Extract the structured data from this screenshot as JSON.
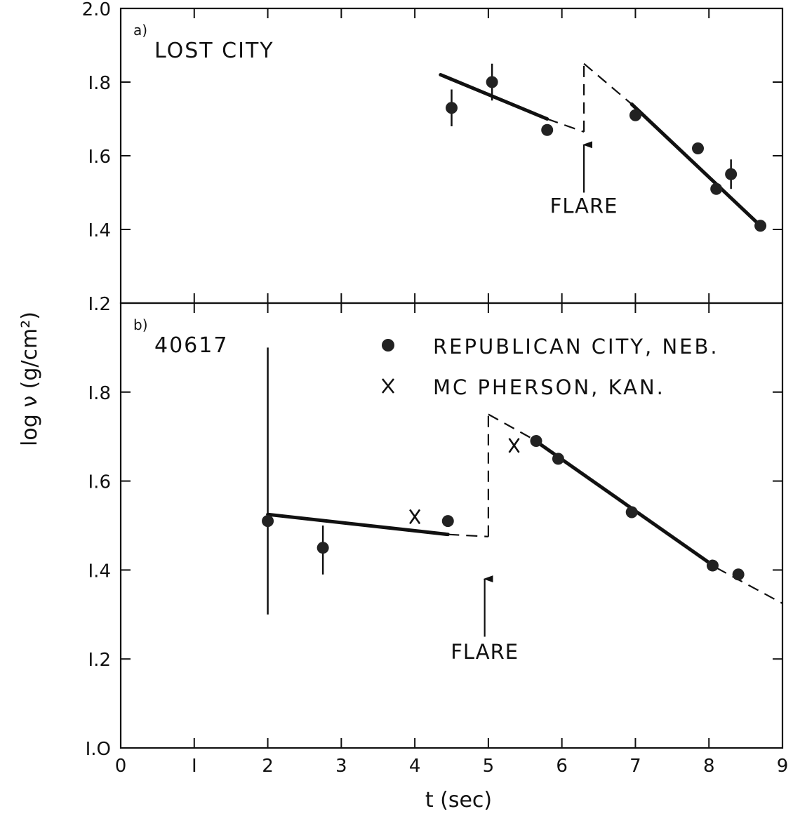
{
  "chart_data": {
    "type": "scatter",
    "x_axis": {
      "label": "t (sec)",
      "range": [
        0,
        9
      ],
      "ticks": [
        0,
        1,
        2,
        3,
        4,
        5,
        6,
        7,
        8,
        9
      ],
      "tick_labels": [
        "0",
        "I",
        "2",
        "3",
        "4",
        "5",
        "6",
        "7",
        "8",
        "9"
      ]
    },
    "y_axis_label": "log ν (g/cm²)",
    "grid": false,
    "panels": [
      {
        "id": "a",
        "letter": "a)",
        "title": "LOST CITY",
        "ylim": [
          1.2,
          2.0
        ],
        "y_ticks": [
          1.2,
          1.4,
          1.6,
          1.8,
          2.0
        ],
        "y_tick_labels": [
          "I.2",
          "I.4",
          "I.6",
          "I.8",
          "2.0"
        ],
        "series": [
          {
            "marker": "dot",
            "points": [
              {
                "x": 4.5,
                "y": 1.73,
                "err": 0.05
              },
              {
                "x": 5.05,
                "y": 1.8,
                "err": 0.05
              },
              {
                "x": 5.8,
                "y": 1.67
              },
              {
                "x": 7.0,
                "y": 1.71
              },
              {
                "x": 7.85,
                "y": 1.62
              },
              {
                "x": 8.1,
                "y": 1.51
              },
              {
                "x": 8.3,
                "y": 1.55,
                "err": 0.04
              },
              {
                "x": 8.7,
                "y": 1.41
              }
            ]
          }
        ],
        "fit_lines": [
          {
            "style": "solid",
            "points": [
              [
                4.35,
                1.82
              ],
              [
                5.8,
                1.7
              ]
            ]
          },
          {
            "style": "dashed",
            "points": [
              [
                5.8,
                1.7
              ],
              [
                6.3,
                1.665
              ]
            ]
          },
          {
            "style": "dashed",
            "points": [
              [
                6.3,
                1.665
              ],
              [
                6.3,
                1.85
              ]
            ]
          },
          {
            "style": "dashed",
            "points": [
              [
                6.3,
                1.85
              ],
              [
                6.95,
                1.74
              ]
            ]
          },
          {
            "style": "solid",
            "points": [
              [
                6.95,
                1.74
              ],
              [
                8.7,
                1.41
              ]
            ]
          }
        ],
        "annotations": [
          {
            "text": "FLARE",
            "x": 6.3,
            "label_y": 1.445,
            "arrow_from_y": 1.5,
            "arrow_to_y": 1.63
          }
        ]
      },
      {
        "id": "b",
        "letter": "b)",
        "title": "40617",
        "ylim": [
          1.0,
          2.0
        ],
        "y_ticks": [
          1.0,
          1.2,
          1.4,
          1.6,
          1.8,
          2.0
        ],
        "y_tick_labels": [
          "I.O",
          "I.2",
          "I.4",
          "I.6",
          "I.8",
          ""
        ],
        "series": [
          {
            "name": "REPUBLICAN CITY, NEB.",
            "marker": "dot",
            "points": [
              {
                "x": 2.0,
                "y": 1.51,
                "err_low": 1.3,
                "err_high": 1.9
              },
              {
                "x": 2.75,
                "y": 1.45,
                "err_low": 1.39,
                "err_high": 1.5
              },
              {
                "x": 4.45,
                "y": 1.51
              },
              {
                "x": 5.65,
                "y": 1.69
              },
              {
                "x": 5.95,
                "y": 1.65
              },
              {
                "x": 6.95,
                "y": 1.53
              },
              {
                "x": 8.05,
                "y": 1.41
              },
              {
                "x": 8.4,
                "y": 1.39
              }
            ]
          },
          {
            "name": "McPHERSON, KAN.",
            "marker": "x",
            "points": [
              {
                "x": 4.0,
                "y": 1.52
              },
              {
                "x": 5.35,
                "y": 1.68
              }
            ]
          }
        ],
        "fit_lines": [
          {
            "style": "solid",
            "points": [
              [
                2.0,
                1.525
              ],
              [
                4.45,
                1.48
              ]
            ]
          },
          {
            "style": "dashed",
            "points": [
              [
                4.45,
                1.48
              ],
              [
                5.0,
                1.475
              ]
            ]
          },
          {
            "style": "dashed",
            "points": [
              [
                5.0,
                1.475
              ],
              [
                5.0,
                1.75
              ]
            ]
          },
          {
            "style": "dashed",
            "points": [
              [
                5.0,
                1.75
              ],
              [
                5.6,
                1.695
              ]
            ]
          },
          {
            "style": "solid",
            "points": [
              [
                5.6,
                1.695
              ],
              [
                8.1,
                1.405
              ]
            ]
          },
          {
            "style": "dashed",
            "points": [
              [
                8.1,
                1.405
              ],
              [
                9.0,
                1.325
              ]
            ]
          }
        ],
        "annotations": [
          {
            "text": "FLARE",
            "x": 4.95,
            "label_y": 1.2,
            "arrow_from_y": 1.25,
            "arrow_to_y": 1.38
          }
        ],
        "legend": {
          "placement": "top-right",
          "entries": [
            {
              "marker": "dot",
              "text": "REPUBLICAN CITY, NEB."
            },
            {
              "marker": "x",
              "text": "MC PHERSON, KAN."
            }
          ]
        }
      }
    ]
  }
}
